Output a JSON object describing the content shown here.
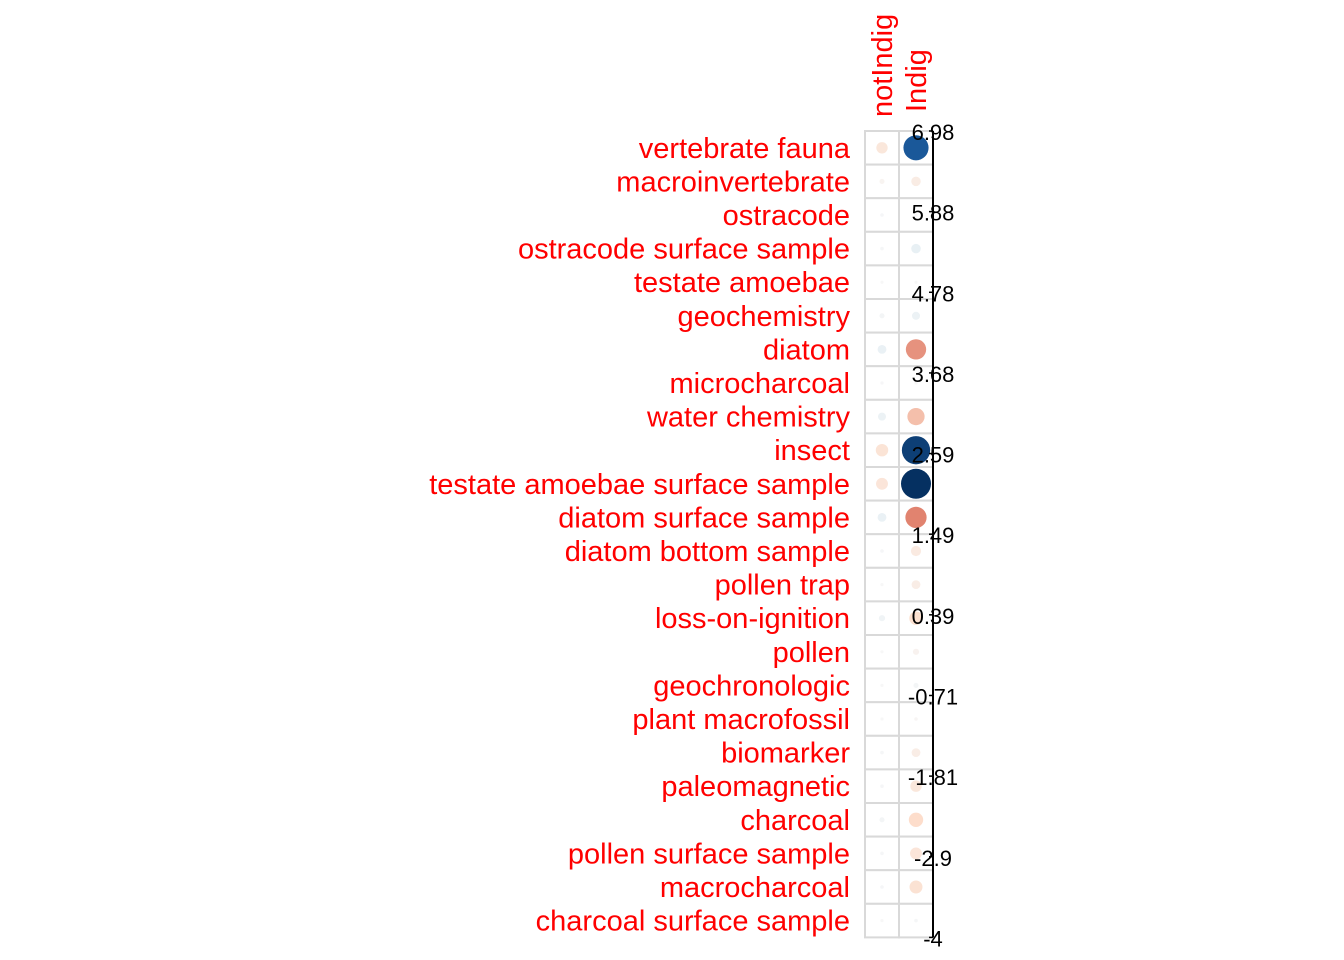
{
  "chart_data": {
    "type": "heatmap",
    "subtype": "correlation-circle-plot",
    "title": "",
    "columns": [
      "notIndig",
      "Indig"
    ],
    "rows": [
      "vertebrate fauna",
      "macroinvertebrate",
      "ostracode",
      "ostracode surface sample",
      "testate amoebae",
      "geochemistry",
      "diatom",
      "microcharcoal",
      "water chemistry",
      "insect",
      "testate amoebae surface sample",
      "diatom surface sample",
      "diatom bottom sample",
      "pollen trap",
      "loss-on-ignition",
      "pollen",
      "geochronologic",
      "plant macrofossil",
      "biomarker",
      "paleomagnetic",
      "charcoal",
      "pollen surface sample",
      "macrocharcoal",
      "charcoal surface sample"
    ],
    "values": [
      [
        -1.0,
        4.9
      ],
      [
        -0.2,
        -0.7
      ],
      [
        0.1,
        0.05
      ],
      [
        0.1,
        0.7
      ],
      [
        0.0,
        0.0
      ],
      [
        0.2,
        0.5
      ],
      [
        0.6,
        -3.2
      ],
      [
        0.05,
        0.0
      ],
      [
        0.5,
        -2.3
      ],
      [
        -1.2,
        6.2
      ],
      [
        -1.1,
        6.98
      ],
      [
        0.6,
        -3.5
      ],
      [
        0.1,
        -0.8
      ],
      [
        0.0,
        -0.6
      ],
      [
        0.3,
        -1.4
      ],
      [
        0.0,
        -0.3
      ],
      [
        0.0,
        0.2
      ],
      [
        0.0,
        -0.1
      ],
      [
        0.1,
        -0.6
      ],
      [
        0.1,
        -1.0
      ],
      [
        0.2,
        -1.6
      ],
      [
        0.1,
        -1.1
      ],
      [
        0.1,
        -1.3
      ],
      [
        0.0,
        0.1
      ]
    ],
    "legend": {
      "orientation": "vertical",
      "placement": "right",
      "ticks": [
        "6.98",
        "5.88",
        "4.78",
        "3.68",
        "2.59",
        "1.49",
        "0.39",
        "-0.71",
        "-1.81",
        "-2.9",
        "-4"
      ],
      "range": [
        -4,
        6.98
      ]
    },
    "colors": {
      "positive_strong": "#053061",
      "positive_mid": "#2166ac",
      "positive_light": "#d1e5f0",
      "negative_strong": "#b2182b",
      "negative_mid": "#d6604d",
      "negative_light": "#fddbc7",
      "label_color": "#ff0000"
    }
  }
}
